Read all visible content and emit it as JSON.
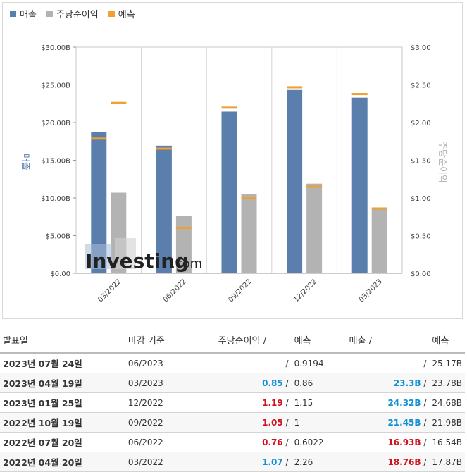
{
  "legend": [
    {
      "label": "매출",
      "color": "#5b7fac"
    },
    {
      "label": "주당순이익",
      "color": "#b3b3b3"
    },
    {
      "label": "예측",
      "color": "#f0a030"
    }
  ],
  "watermark": {
    "main": "Investing",
    "suffix": ".com"
  },
  "chart_data": {
    "type": "bar",
    "categories": [
      "03/2022",
      "06/2022",
      "09/2022",
      "12/2022",
      "03/2023"
    ],
    "series": [
      {
        "name": "매출",
        "axis": "left",
        "values": [
          18.76,
          16.93,
          21.45,
          24.32,
          23.3
        ],
        "color": "#5b7fac"
      },
      {
        "name": "주당순이익",
        "axis": "right",
        "values": [
          1.07,
          0.76,
          1.05,
          1.19,
          0.85
        ],
        "color": "#b3b3b3"
      }
    ],
    "forecast": {
      "name": "예측",
      "color": "#f0a030",
      "revenue": [
        17.87,
        16.54,
        21.98,
        24.68,
        23.78
      ],
      "eps": [
        2.26,
        0.6022,
        1,
        1.15,
        0.86
      ]
    },
    "ylabel_left": "매출",
    "ylabel_right": "주당순이익",
    "ylim_left": [
      0,
      30
    ],
    "ylim_right": [
      0,
      3
    ],
    "yticks_left": [
      "$0.00",
      "$5.00B",
      "$10.00B",
      "$15.00B",
      "$20.00B",
      "$25.00B",
      "$30.00B"
    ],
    "yticks_right": [
      "$0.00",
      "$0.50",
      "$1.00",
      "$1.50",
      "$2.00",
      "$2.50",
      "$3.00"
    ],
    "grid": "vertical"
  },
  "table": {
    "headers": {
      "date": "발표일",
      "period": "마감 기준",
      "eps": "주당순이익",
      "eps_fc": "예측",
      "rev": "매출",
      "rev_fc": "예측",
      "sep": "/"
    },
    "rows": [
      {
        "date": "2023년 07월 24일",
        "period": "06/2023",
        "eps": "--",
        "eps_fc": "0.9194",
        "rev": "--",
        "rev_fc": "25.17B",
        "eps_cls": "neu",
        "rev_cls": "neu"
      },
      {
        "date": "2023년 04월 19일",
        "period": "03/2023",
        "eps": "0.85",
        "eps_fc": "0.86",
        "rev": "23.3B",
        "rev_fc": "23.78B",
        "eps_cls": "pos",
        "rev_cls": "pos"
      },
      {
        "date": "2023년 01월 25일",
        "period": "12/2022",
        "eps": "1.19",
        "eps_fc": "1.15",
        "rev": "24.32B",
        "rev_fc": "24.68B",
        "eps_cls": "neg",
        "rev_cls": "pos"
      },
      {
        "date": "2022년 10월 19일",
        "period": "09/2022",
        "eps": "1.05",
        "eps_fc": "1",
        "rev": "21.45B",
        "rev_fc": "21.98B",
        "eps_cls": "neg",
        "rev_cls": "pos"
      },
      {
        "date": "2022년 07월 20일",
        "period": "06/2022",
        "eps": "0.76",
        "eps_fc": "0.6022",
        "rev": "16.93B",
        "rev_fc": "16.54B",
        "eps_cls": "neg",
        "rev_cls": "neg"
      },
      {
        "date": "2022년 04월 20일",
        "period": "03/2022",
        "eps": "1.07",
        "eps_fc": "2.26",
        "rev": "18.76B",
        "rev_fc": "17.87B",
        "eps_cls": "pos",
        "rev_cls": "neg"
      }
    ]
  }
}
